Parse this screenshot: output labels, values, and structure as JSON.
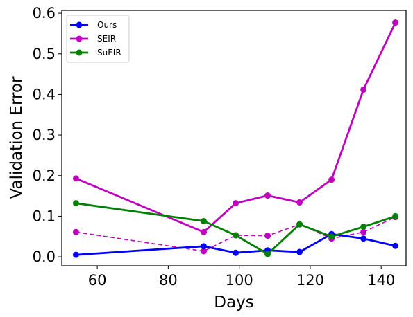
{
  "chart_data": {
    "type": "line",
    "title": "",
    "xlabel": "Days",
    "ylabel": "Validation Error",
    "xlim": [
      50,
      147
    ],
    "ylim": [
      -0.022,
      0.607
    ],
    "xticks": [
      60,
      80,
      100,
      120,
      140
    ],
    "yticks": [
      0.0,
      0.1,
      0.2,
      0.3,
      0.4,
      0.5,
      0.6
    ],
    "xtick_labels": [
      "60",
      "80",
      "100",
      "120",
      "140"
    ],
    "ytick_labels": [
      "0.0",
      "0.1",
      "0.2",
      "0.3",
      "0.4",
      "0.5",
      "0.6"
    ],
    "grid": false,
    "legend_position": "top-left",
    "series": [
      {
        "name": "Ours",
        "color": "#0000ff",
        "style": "solid",
        "x": [
          54,
          90,
          99,
          108,
          117,
          126,
          135,
          144
        ],
        "y": [
          0.005,
          0.026,
          0.01,
          0.016,
          0.012,
          0.056,
          0.045,
          0.027
        ]
      },
      {
        "name": "SEIR",
        "color": "#bf00bf",
        "style": "solid",
        "x": [
          54,
          90,
          99,
          108,
          117,
          126,
          135,
          144
        ],
        "y": [
          0.193,
          0.061,
          0.132,
          0.151,
          0.134,
          0.19,
          0.412,
          0.577
        ]
      },
      {
        "name": "SuEIR",
        "color": "#008000",
        "style": "solid",
        "x": [
          54,
          90,
          99,
          108,
          117,
          126,
          135,
          144
        ],
        "y": [
          0.132,
          0.088,
          0.053,
          0.007,
          0.08,
          0.05,
          0.074,
          0.1
        ]
      },
      {
        "name": "",
        "color": "#bf00bf",
        "style": "dashed",
        "x": [
          54,
          90,
          99,
          108,
          117,
          126,
          135,
          144
        ],
        "y": [
          0.061,
          0.014,
          0.053,
          0.052,
          0.08,
          0.045,
          0.061,
          0.098
        ]
      }
    ]
  }
}
